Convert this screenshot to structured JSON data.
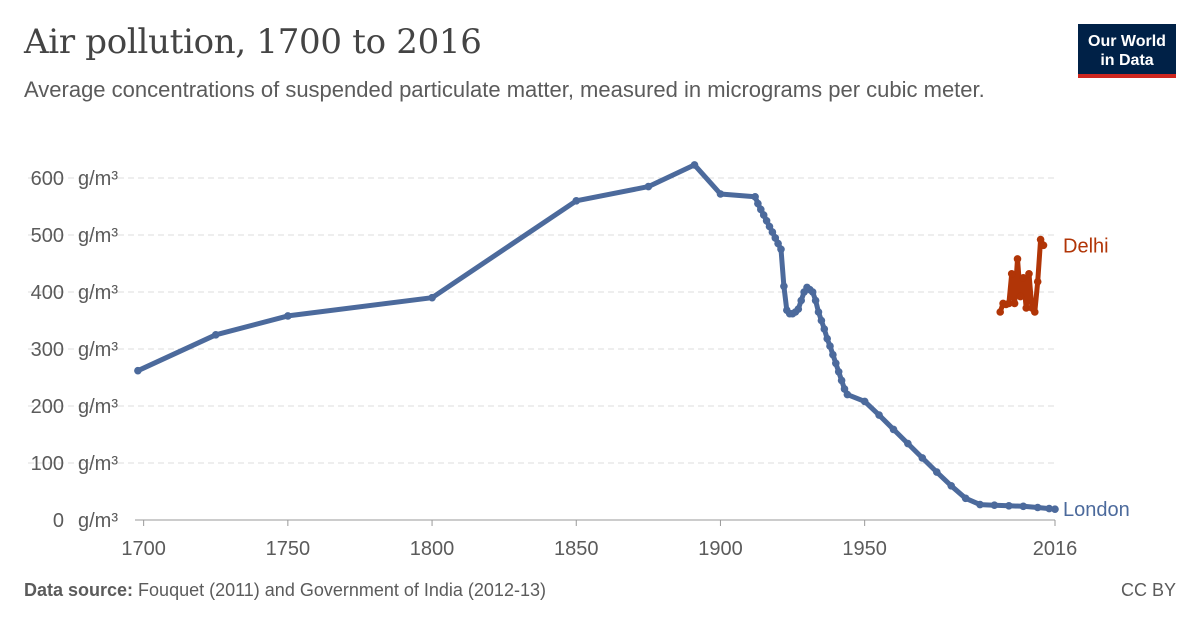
{
  "title": "Air pollution, 1700 to 2016",
  "subtitle": "Average concentrations of suspended particulate matter, measured in micrograms per cubic meter.",
  "logo": {
    "line1": "Our World",
    "line2": "in Data"
  },
  "footer": {
    "source_label": "Data source:",
    "source_text": " Fouquet (2011) and Government of India (2012-13)",
    "license": "CC BY"
  },
  "chart_data": {
    "type": "line",
    "title": "Air pollution, 1700 to 2016",
    "xlabel": "",
    "ylabel": "",
    "xlim": [
      1697,
      2016
    ],
    "ylim": [
      0,
      620
    ],
    "y_unit": "g/m³",
    "y_ticks": [
      0,
      100,
      200,
      300,
      400,
      500,
      600
    ],
    "y_tick_labels": [
      "0",
      "100",
      "200",
      "300",
      "400",
      "500",
      "600"
    ],
    "x_ticks": [
      1700,
      1750,
      1800,
      1850,
      1900,
      1950,
      2016
    ],
    "x_tick_labels": [
      "1700",
      "1750",
      "1800",
      "1850",
      "1900",
      "1950",
      "2016"
    ],
    "grid": true,
    "series": [
      {
        "name": "London",
        "color": "#4c6a9c",
        "points": [
          [
            1698,
            262
          ],
          [
            1725,
            325
          ],
          [
            1750,
            358
          ],
          [
            1800,
            390
          ],
          [
            1850,
            560
          ],
          [
            1875,
            585
          ],
          [
            1891,
            623
          ],
          [
            1900,
            572
          ],
          [
            1912,
            567
          ],
          [
            1913,
            555
          ],
          [
            1914,
            545
          ],
          [
            1915,
            535
          ],
          [
            1916,
            525
          ],
          [
            1917,
            515
          ],
          [
            1918,
            505
          ],
          [
            1919,
            495
          ],
          [
            1920,
            485
          ],
          [
            1921,
            475
          ],
          [
            1922,
            410
          ],
          [
            1923,
            368
          ],
          [
            1924,
            362
          ],
          [
            1925,
            362
          ],
          [
            1926,
            365
          ],
          [
            1927,
            370
          ],
          [
            1928,
            385
          ],
          [
            1929,
            400
          ],
          [
            1930,
            408
          ],
          [
            1931,
            404
          ],
          [
            1932,
            400
          ],
          [
            1933,
            385
          ],
          [
            1934,
            365
          ],
          [
            1935,
            350
          ],
          [
            1936,
            335
          ],
          [
            1937,
            318
          ],
          [
            1938,
            305
          ],
          [
            1939,
            290
          ],
          [
            1940,
            275
          ],
          [
            1941,
            260
          ],
          [
            1942,
            245
          ],
          [
            1943,
            230
          ],
          [
            1944,
            220
          ],
          [
            1950,
            208
          ],
          [
            1955,
            184
          ],
          [
            1960,
            159
          ],
          [
            1965,
            134
          ],
          [
            1970,
            109
          ],
          [
            1975,
            84
          ],
          [
            1980,
            60
          ],
          [
            1985,
            38
          ],
          [
            1990,
            27
          ],
          [
            1995,
            26
          ],
          [
            2000,
            25
          ],
          [
            2005,
            24
          ],
          [
            2010,
            22
          ],
          [
            2014,
            20
          ],
          [
            2016,
            19
          ]
        ]
      },
      {
        "name": "Delhi",
        "color": "#b13507",
        "points": [
          [
            1997,
            365
          ],
          [
            1998,
            380
          ],
          [
            1999,
            378
          ],
          [
            2000,
            380
          ],
          [
            2001,
            432
          ],
          [
            2002,
            380
          ],
          [
            2003,
            458
          ],
          [
            2004,
            392
          ],
          [
            2005,
            425
          ],
          [
            2006,
            372
          ],
          [
            2007,
            432
          ],
          [
            2008,
            372
          ],
          [
            2009,
            365
          ],
          [
            2010,
            418
          ],
          [
            2011,
            492
          ],
          [
            2012,
            482
          ]
        ]
      }
    ]
  }
}
